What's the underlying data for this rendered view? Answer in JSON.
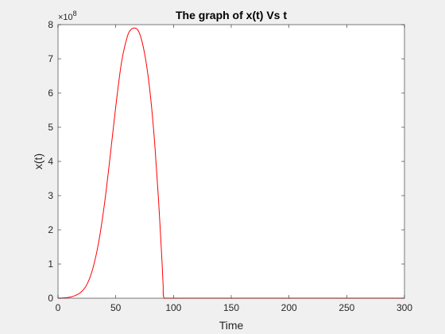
{
  "chart_data": {
    "type": "line",
    "title": "The graph of x(t) Vs t",
    "xlabel": "Time",
    "ylabel": "x(t)",
    "xlim": [
      0,
      300
    ],
    "ylim": [
      0,
      800000000
    ],
    "x_ticks": [
      0,
      50,
      100,
      150,
      200,
      250,
      300
    ],
    "x_tick_labels": [
      "0",
      "50",
      "100",
      "150",
      "200",
      "250",
      "300"
    ],
    "y_ticks": [
      0,
      100000000,
      200000000,
      300000000,
      400000000,
      500000000,
      600000000,
      700000000,
      800000000
    ],
    "y_tick_labels": [
      "0",
      "1",
      "2",
      "3",
      "4",
      "5",
      "6",
      "7",
      "8"
    ],
    "y_exponent_base": "×10",
    "y_exponent_power": "8",
    "grid": false,
    "series": [
      {
        "color": "#ff0000",
        "x": [
          0,
          5,
          10,
          15,
          20,
          25,
          30,
          35,
          40,
          45,
          50,
          55,
          60,
          63,
          66,
          69,
          72,
          75,
          78,
          81,
          84,
          87,
          90,
          91,
          92,
          100,
          150,
          200,
          250,
          300
        ],
        "y": [
          0,
          1000000,
          3000000,
          8000000,
          18000000,
          40000000,
          85000000,
          160000000,
          270000000,
          410000000,
          560000000,
          690000000,
          765000000,
          785000000,
          790000000,
          785000000,
          760000000,
          715000000,
          650000000,
          560000000,
          440000000,
          290000000,
          110000000,
          40000000,
          0,
          0,
          0,
          0,
          0,
          0
        ]
      }
    ]
  }
}
